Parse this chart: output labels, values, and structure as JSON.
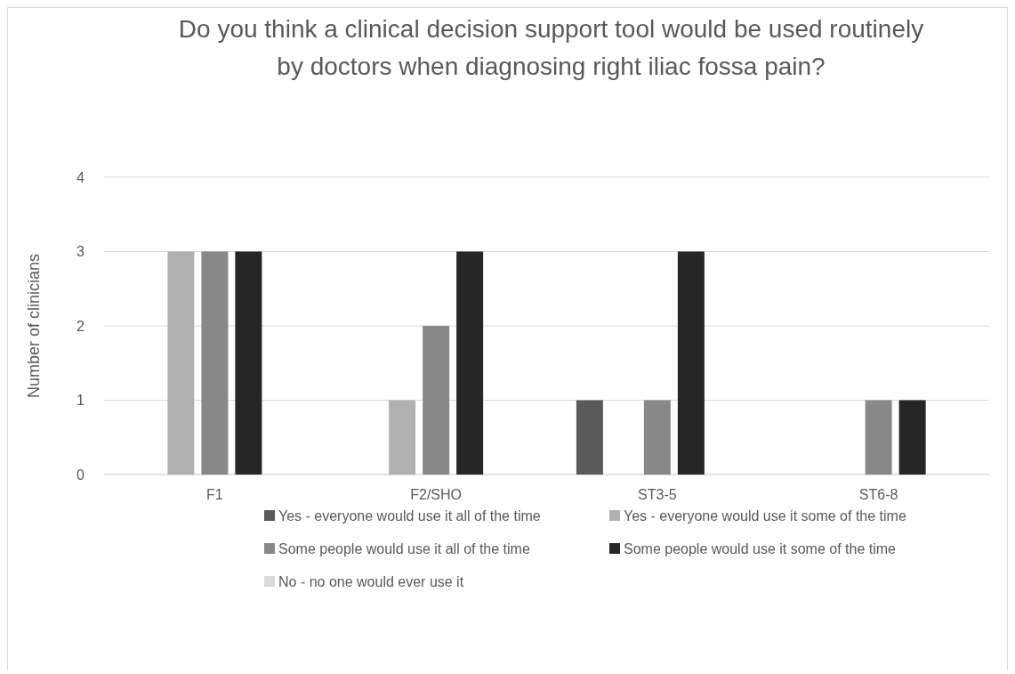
{
  "chart_data": {
    "type": "bar",
    "title": "Do you think a clinical decision support tool would be used routinely by doctors when diagnosing right iliac fossa pain?",
    "ylabel": "Number of clinicians",
    "categories": [
      "F1",
      "F2/SHO",
      "ST3-5",
      "ST6-8"
    ],
    "series": [
      {
        "name": "Yes - everyone would use it all of the time",
        "color": "#5a5a5a",
        "values": [
          0,
          0,
          1,
          0
        ]
      },
      {
        "name": "Yes - everyone would use it some of the time",
        "color": "#b0b0b0",
        "values": [
          3,
          1,
          0,
          0
        ]
      },
      {
        "name": "Some people would use it all of the time",
        "color": "#888888",
        "values": [
          3,
          2,
          1,
          1
        ]
      },
      {
        "name": "Some people would use it some of the time",
        "color": "#262626",
        "values": [
          3,
          3,
          3,
          1
        ]
      },
      {
        "name": "No - no one would ever use it",
        "color": "#dadada",
        "values": [
          0,
          0,
          0,
          0
        ]
      }
    ],
    "ylim": [
      0,
      4
    ],
    "yticks": [
      0,
      1,
      2,
      3,
      4
    ],
    "grid": "y",
    "legend": "bottom"
  }
}
